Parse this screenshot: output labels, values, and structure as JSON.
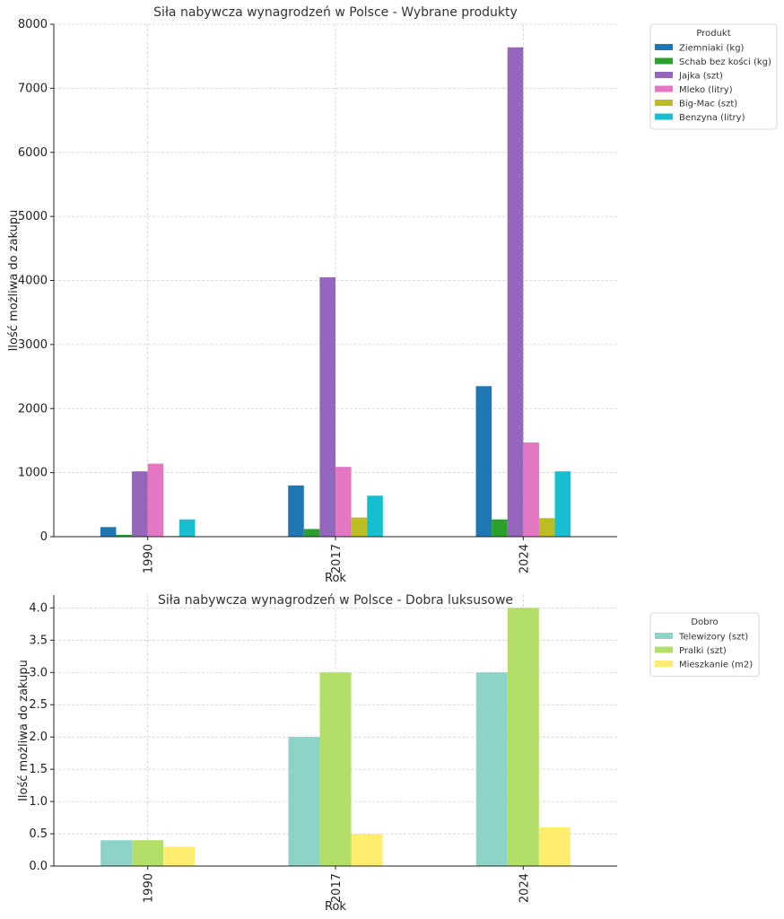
{
  "chart_data": [
    {
      "type": "bar",
      "title": "Siła nabywcza wynagrodzeń w Polsce - Wybrane produkty",
      "xlabel": "Rok",
      "ylabel": "Ilość możliwa do zakupu",
      "categories": [
        "1990",
        "2017",
        "2024"
      ],
      "ylim": [
        0,
        8000
      ],
      "yticks": [
        "0",
        "1000",
        "2000",
        "3000",
        "4000",
        "5000",
        "6000",
        "7000",
        "8000"
      ],
      "ytick_values": [
        0,
        1000,
        2000,
        3000,
        4000,
        5000,
        6000,
        7000,
        8000
      ],
      "grid": true,
      "legend_title": "Produkt",
      "legend_position": "outside-top-right",
      "series": [
        {
          "name": "Ziemniaki (kg)",
          "color": "#1f77b4",
          "values": [
            150,
            800,
            2350
          ]
        },
        {
          "name": "Schab bez kości (kg)",
          "color": "#2ca02c",
          "values": [
            30,
            120,
            270
          ]
        },
        {
          "name": "Jajka (szt)",
          "color": "#9467bd",
          "values": [
            1020,
            4050,
            7640
          ]
        },
        {
          "name": "Mleko (litry)",
          "color": "#e377c2",
          "values": [
            1140,
            1090,
            1470
          ]
        },
        {
          "name": "Big-Mac (szt)",
          "color": "#bcbd22",
          "values": [
            10,
            300,
            290
          ]
        },
        {
          "name": "Benzyna (litry)",
          "color": "#17becf",
          "values": [
            270,
            640,
            1020
          ]
        }
      ]
    },
    {
      "type": "bar",
      "title": "Siła nabywcza wynagrodzeń w Polsce - Dobra luksusowe",
      "xlabel": "Rok",
      "ylabel": "Ilość możliwa do zakupu",
      "categories": [
        "1990",
        "2017",
        "2024"
      ],
      "ylim": [
        0,
        4.2
      ],
      "yticks": [
        "0.0",
        "0.5",
        "1.0",
        "1.5",
        "2.0",
        "2.5",
        "3.0",
        "3.5",
        "4.0"
      ],
      "ytick_values": [
        0,
        0.5,
        1.0,
        1.5,
        2.0,
        2.5,
        3.0,
        3.5,
        4.0
      ],
      "grid": true,
      "legend_title": "Dobro",
      "legend_position": "outside-top-right",
      "series": [
        {
          "name": "Telewizory (szt)",
          "color": "#8dd3c7",
          "values": [
            0.4,
            2.0,
            3.0
          ]
        },
        {
          "name": "Pralki (szt)",
          "color": "#b3de69",
          "values": [
            0.4,
            3.0,
            4.0
          ]
        },
        {
          "name": "Mieszkanie (m2)",
          "color": "#ffed6f",
          "values": [
            0.3,
            0.5,
            0.6
          ]
        }
      ]
    }
  ]
}
